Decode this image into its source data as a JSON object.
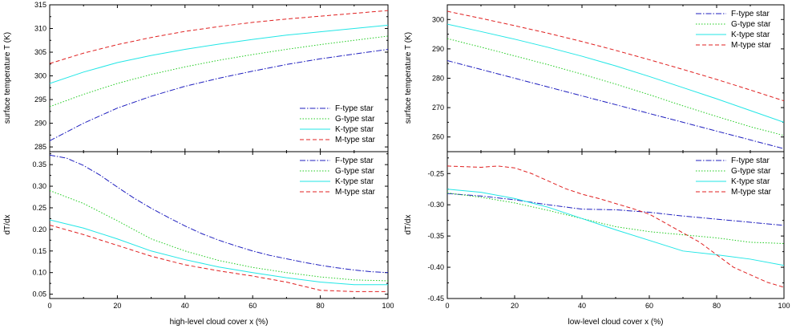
{
  "colors": {
    "F": "#1f1fbf",
    "G": "#22cc22",
    "K": "#22e6e6",
    "M": "#e02020"
  },
  "chart_data": [
    {
      "type": "line",
      "panel": "left-top",
      "xlabel": "",
      "ylabel": "surface temperature T (K)",
      "xlim": [
        0,
        100
      ],
      "ylim": [
        284,
        315
      ],
      "xticks": [
        0,
        20,
        40,
        60,
        80,
        100
      ],
      "yticks": [
        285,
        290,
        295,
        300,
        305,
        310,
        315
      ],
      "show_xtick_labels": false,
      "legend_position": "bottom-right",
      "series": [
        {
          "name": "F-type star",
          "style": "dashdot",
          "color_key": "F",
          "x": [
            0,
            10,
            20,
            30,
            40,
            50,
            60,
            70,
            80,
            90,
            100
          ],
          "y": [
            286.3,
            290.0,
            293.2,
            295.7,
            297.8,
            299.5,
            301.0,
            302.4,
            303.6,
            304.6,
            305.6
          ]
        },
        {
          "name": "G-type star",
          "style": "dotted",
          "color_key": "G",
          "x": [
            0,
            10,
            20,
            30,
            40,
            50,
            60,
            70,
            80,
            90,
            100
          ],
          "y": [
            293.5,
            296.1,
            298.4,
            300.3,
            301.9,
            303.3,
            304.5,
            305.6,
            306.6,
            307.5,
            308.4
          ]
        },
        {
          "name": "K-type star",
          "style": "solid",
          "color_key": "K",
          "x": [
            0,
            10,
            20,
            30,
            40,
            50,
            60,
            70,
            80,
            90,
            100
          ],
          "y": [
            298.4,
            300.8,
            302.8,
            304.3,
            305.6,
            306.7,
            307.7,
            308.6,
            309.3,
            310.0,
            310.7
          ]
        },
        {
          "name": "M-type star",
          "style": "dashed",
          "color_key": "M",
          "x": [
            0,
            10,
            20,
            30,
            40,
            50,
            60,
            70,
            80,
            90,
            100
          ],
          "y": [
            302.6,
            304.8,
            306.6,
            308.1,
            309.4,
            310.4,
            311.3,
            312.0,
            312.6,
            313.2,
            313.8
          ]
        }
      ]
    },
    {
      "type": "line",
      "panel": "left-bottom",
      "xlabel": "high-level cloud cover x (%)",
      "ylabel": "dT/dx",
      "xlim": [
        0,
        100
      ],
      "ylim": [
        0.04,
        0.38
      ],
      "xticks": [
        0,
        20,
        40,
        60,
        80,
        100
      ],
      "yticks": [
        0.05,
        0.1,
        0.15,
        0.2,
        0.25,
        0.3,
        0.35
      ],
      "ytick_labels": [
        "0.05",
        "0.10",
        "0.15",
        "0.20",
        "0.25",
        "0.30",
        "0.35"
      ],
      "show_xtick_labels": true,
      "legend_position": "top-right",
      "series": [
        {
          "name": "F-type star",
          "style": "dashdot",
          "color_key": "F",
          "x": [
            0,
            5,
            10,
            15,
            20,
            25,
            30,
            35,
            40,
            45,
            50,
            55,
            60,
            65,
            70,
            75,
            80,
            85,
            90,
            95,
            100
          ],
          "y": [
            0.372,
            0.365,
            0.348,
            0.325,
            0.298,
            0.272,
            0.249,
            0.228,
            0.208,
            0.19,
            0.175,
            0.162,
            0.15,
            0.14,
            0.132,
            0.124,
            0.117,
            0.111,
            0.106,
            0.102,
            0.1
          ]
        },
        {
          "name": "G-type star",
          "style": "dotted",
          "color_key": "G",
          "x": [
            0,
            10,
            20,
            30,
            40,
            50,
            60,
            70,
            80,
            90,
            100
          ],
          "y": [
            0.29,
            0.26,
            0.22,
            0.178,
            0.15,
            0.128,
            0.112,
            0.1,
            0.09,
            0.083,
            0.081
          ]
        },
        {
          "name": "K-type star",
          "style": "solid",
          "color_key": "K",
          "x": [
            0,
            10,
            20,
            30,
            40,
            50,
            60,
            70,
            80,
            90,
            100
          ],
          "y": [
            0.222,
            0.203,
            0.178,
            0.15,
            0.13,
            0.113,
            0.1,
            0.088,
            0.078,
            0.072,
            0.072
          ]
        },
        {
          "name": "M-type star",
          "style": "dashed",
          "color_key": "M",
          "x": [
            0,
            10,
            20,
            30,
            40,
            50,
            60,
            70,
            80,
            90,
            100
          ],
          "y": [
            0.21,
            0.188,
            0.163,
            0.138,
            0.118,
            0.104,
            0.092,
            0.078,
            0.059,
            0.056,
            0.056
          ]
        }
      ]
    },
    {
      "type": "line",
      "panel": "right-top",
      "xlabel": "",
      "ylabel": "surface temperature T (K)",
      "xlim": [
        0,
        100
      ],
      "ylim": [
        255,
        305
      ],
      "xticks": [
        0,
        20,
        40,
        60,
        80,
        100
      ],
      "yticks": [
        260,
        270,
        280,
        290,
        300
      ],
      "show_xtick_labels": false,
      "legend_position": "top-right",
      "series": [
        {
          "name": "F-type star",
          "style": "dashdot",
          "color_key": "F",
          "x": [
            0,
            10,
            20,
            30,
            40,
            50,
            60,
            70,
            80,
            90,
            100
          ],
          "y": [
            286.0,
            283.0,
            280.0,
            277.0,
            274.0,
            271.0,
            268.0,
            265.0,
            262.0,
            259.0,
            256.0
          ]
        },
        {
          "name": "G-type star",
          "style": "dotted",
          "color_key": "G",
          "x": [
            0,
            10,
            20,
            30,
            40,
            50,
            60,
            70,
            80,
            90,
            100
          ],
          "y": [
            293.5,
            290.6,
            287.6,
            284.6,
            281.4,
            278.0,
            274.4,
            270.6,
            267.0,
            263.5,
            260.5
          ]
        },
        {
          "name": "K-type star",
          "style": "solid",
          "color_key": "K",
          "x": [
            0,
            10,
            20,
            30,
            40,
            50,
            60,
            70,
            80,
            90,
            100
          ],
          "y": [
            298.4,
            295.9,
            293.3,
            290.5,
            287.5,
            284.2,
            280.6,
            276.8,
            273.0,
            269.0,
            265.0
          ]
        },
        {
          "name": "M-type star",
          "style": "dashed",
          "color_key": "M",
          "x": [
            0,
            10,
            20,
            30,
            40,
            50,
            60,
            70,
            80,
            90,
            100
          ],
          "y": [
            302.8,
            300.4,
            297.9,
            295.3,
            292.5,
            289.5,
            286.3,
            283.0,
            279.6,
            276.0,
            272.3
          ]
        }
      ]
    },
    {
      "type": "line",
      "panel": "right-bottom",
      "xlabel": "low-level cloud cover x (%)",
      "ylabel": "dT/dx",
      "xlim": [
        0,
        100
      ],
      "ylim": [
        -0.45,
        -0.215
      ],
      "xticks": [
        0,
        20,
        40,
        60,
        80,
        100
      ],
      "yticks": [
        -0.45,
        -0.4,
        -0.35,
        -0.3,
        -0.25
      ],
      "ytick_labels": [
        "-0.45",
        "-0.40",
        "-0.35",
        "-0.30",
        "-0.25"
      ],
      "show_xtick_labels": true,
      "legend_position": "top-right",
      "series": [
        {
          "name": "F-type star",
          "style": "dashdot",
          "color_key": "F",
          "x": [
            0,
            10,
            20,
            30,
            40,
            50,
            60,
            70,
            80,
            90,
            100
          ],
          "y": [
            -0.282,
            -0.286,
            -0.292,
            -0.3,
            -0.307,
            -0.308,
            -0.312,
            -0.318,
            -0.323,
            -0.328,
            -0.333
          ]
        },
        {
          "name": "G-type star",
          "style": "dotted",
          "color_key": "G",
          "x": [
            0,
            10,
            20,
            30,
            40,
            50,
            60,
            70,
            80,
            90,
            100
          ],
          "y": [
            -0.281,
            -0.288,
            -0.297,
            -0.309,
            -0.322,
            -0.335,
            -0.343,
            -0.348,
            -0.353,
            -0.36,
            -0.362
          ]
        },
        {
          "name": "K-type star",
          "style": "solid",
          "color_key": "K",
          "x": [
            0,
            10,
            20,
            30,
            40,
            50,
            60,
            70,
            80,
            90,
            100
          ],
          "y": [
            -0.275,
            -0.28,
            -0.29,
            -0.304,
            -0.322,
            -0.34,
            -0.357,
            -0.374,
            -0.38,
            -0.387,
            -0.397
          ]
        },
        {
          "name": "M-type star",
          "style": "dashed",
          "color_key": "M",
          "x": [
            0,
            5,
            10,
            15,
            20,
            25,
            30,
            35,
            40,
            45,
            50,
            55,
            60,
            65,
            70,
            75,
            80,
            85,
            90,
            95,
            100
          ],
          "y": [
            -0.238,
            -0.239,
            -0.24,
            -0.238,
            -0.241,
            -0.25,
            -0.262,
            -0.274,
            -0.283,
            -0.29,
            -0.298,
            -0.306,
            -0.315,
            -0.33,
            -0.345,
            -0.36,
            -0.38,
            -0.4,
            -0.412,
            -0.424,
            -0.432
          ]
        }
      ]
    }
  ]
}
